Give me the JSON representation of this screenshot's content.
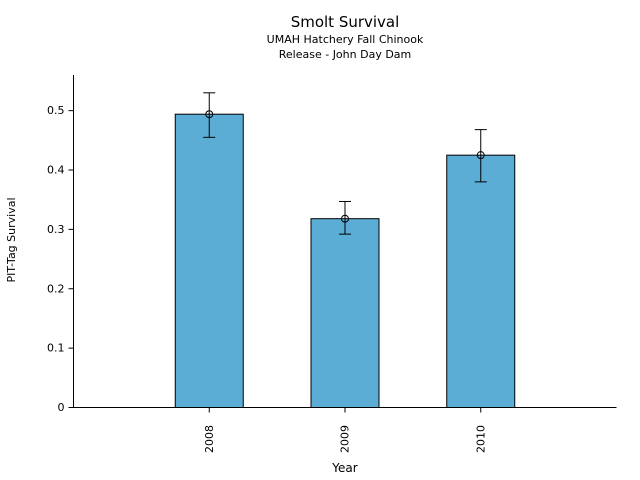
{
  "chart_data": {
    "type": "bar",
    "title": "Smolt Survival",
    "subtitle": [
      "UMAH Hatchery Fall Chinook",
      "Release - John Day Dam"
    ],
    "xlabel": "Year",
    "ylabel": "PIT-Tag Survival",
    "categories": [
      "2008",
      "2009",
      "2010"
    ],
    "values": [
      0.494,
      0.318,
      0.425
    ],
    "error_lower": [
      0.455,
      0.292,
      0.38
    ],
    "error_upper": [
      0.53,
      0.347,
      0.468
    ],
    "yticks": [
      0,
      0.1,
      0.2,
      0.3,
      0.4,
      0.5
    ],
    "ylim": [
      0,
      0.56
    ],
    "grid": false,
    "legend": null,
    "marker": "open-circle",
    "bar_color": "#5BADD6",
    "bar_edge_color": "#000000",
    "axis_color": "#000000"
  }
}
